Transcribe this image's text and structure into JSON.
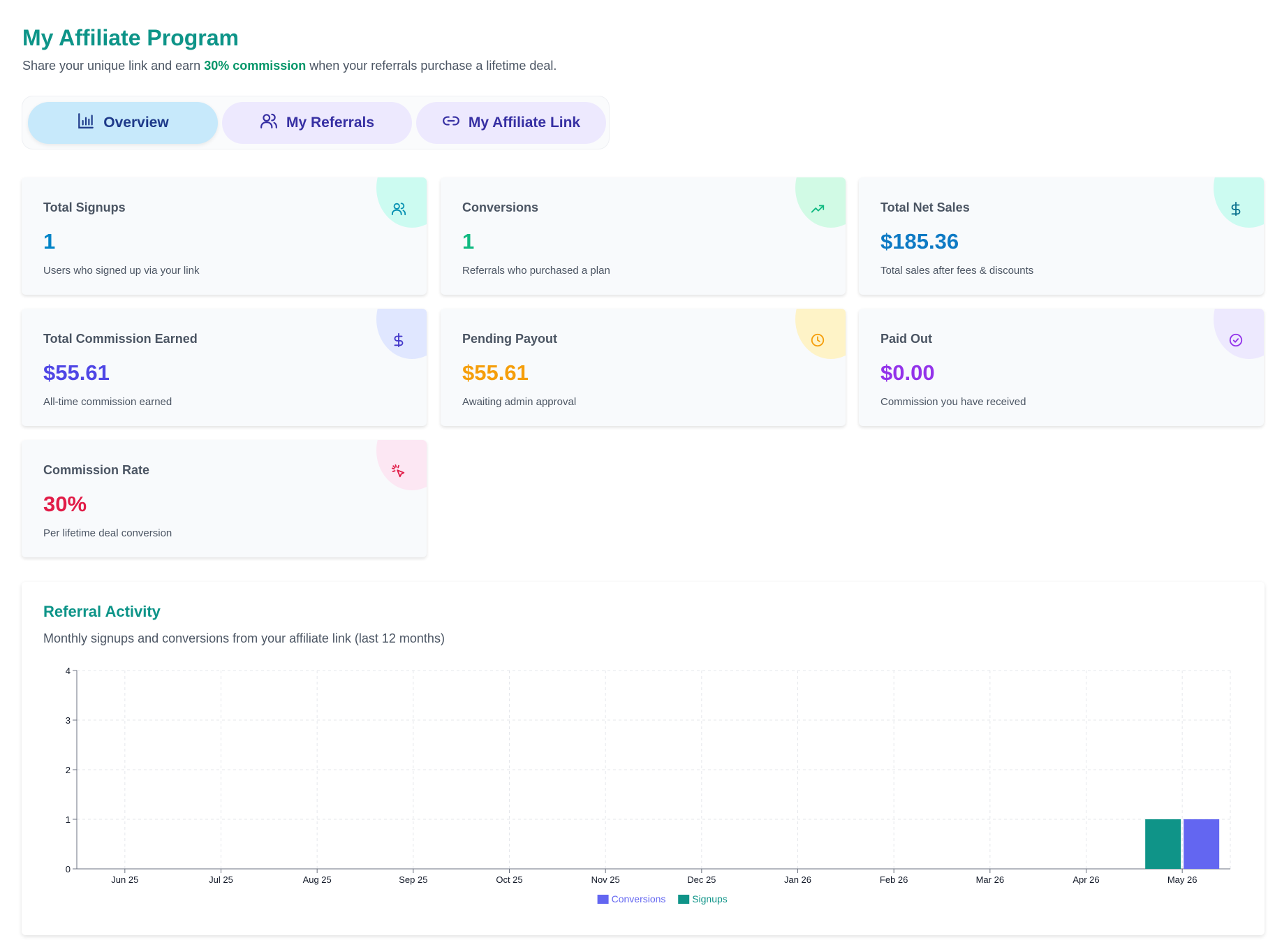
{
  "header": {
    "title": "My Affiliate Program",
    "subtitle_pre": "Share your unique link and earn ",
    "subtitle_highlight": "30% commission",
    "subtitle_post": " when your referrals purchase a lifetime deal."
  },
  "tabs": [
    {
      "label": "Overview",
      "icon": "bar-chart-icon",
      "active": true
    },
    {
      "label": "My Referrals",
      "icon": "users-icon",
      "active": false
    },
    {
      "label": "My Affiliate Link",
      "icon": "link-icon",
      "active": false
    }
  ],
  "stats": [
    {
      "label": "Total Signups",
      "value": "1",
      "desc": "Users who signed up via your link",
      "color": "#0284c7",
      "icon": "users-icon",
      "icon_color": "#0891b2",
      "blob_color": "#ccfbf1"
    },
    {
      "label": "Conversions",
      "value": "1",
      "desc": "Referrals who purchased a plan",
      "color": "#10b981",
      "icon": "trending-up-icon",
      "icon_color": "#10b981",
      "blob_color": "#d1fae5"
    },
    {
      "label": "Total Net Sales",
      "value": "$185.36",
      "desc": "Total sales after fees & discounts",
      "color": "#0e7ac4",
      "icon": "dollar-icon",
      "icon_color": "#0e7490",
      "blob_color": "#ccfbf1"
    },
    {
      "label": "Total Commission Earned",
      "value": "$55.61",
      "desc": "All-time commission earned",
      "color": "#4f46e5",
      "icon": "dollar-icon",
      "icon_color": "#4338ca",
      "blob_color": "#e0e7ff"
    },
    {
      "label": "Pending Payout",
      "value": "$55.61",
      "desc": "Awaiting admin approval",
      "color": "#f59e0b",
      "icon": "clock-icon",
      "icon_color": "#f59e0b",
      "blob_color": "#fef3c7"
    },
    {
      "label": "Paid Out",
      "value": "$0.00",
      "desc": "Commission you have received",
      "color": "#9333ea",
      "icon": "check-circle-icon",
      "icon_color": "#9333ea",
      "blob_color": "#ede9fe"
    },
    {
      "label": "Commission Rate",
      "value": "30%",
      "desc": "Per lifetime deal conversion",
      "color": "#e11d48",
      "icon": "cursor-click-icon",
      "icon_color": "#e11d48",
      "blob_color": "#fce7f3"
    }
  ],
  "activity": {
    "title": "Referral Activity",
    "subtitle": "Monthly signups and conversions from your affiliate link (last 12 months)"
  },
  "chart_data": {
    "type": "bar",
    "categories": [
      "Jun 25",
      "Jul 25",
      "Aug 25",
      "Sep 25",
      "Oct 25",
      "Nov 25",
      "Dec 25",
      "Jan 26",
      "Feb 26",
      "Mar 26",
      "Apr 26",
      "May 26"
    ],
    "series": [
      {
        "name": "Signups",
        "values": [
          0,
          0,
          0,
          0,
          0,
          0,
          0,
          0,
          0,
          0,
          0,
          1
        ],
        "color": "#0f9488"
      },
      {
        "name": "Conversions",
        "values": [
          0,
          0,
          0,
          0,
          0,
          0,
          0,
          0,
          0,
          0,
          0,
          1
        ],
        "color": "#6366f1"
      }
    ],
    "legend_order": [
      "Conversions",
      "Signups"
    ],
    "yticks": [
      0,
      1,
      2,
      3,
      4
    ],
    "ylim": [
      0,
      4
    ],
    "grid": true,
    "legend_position": "bottom-center"
  }
}
